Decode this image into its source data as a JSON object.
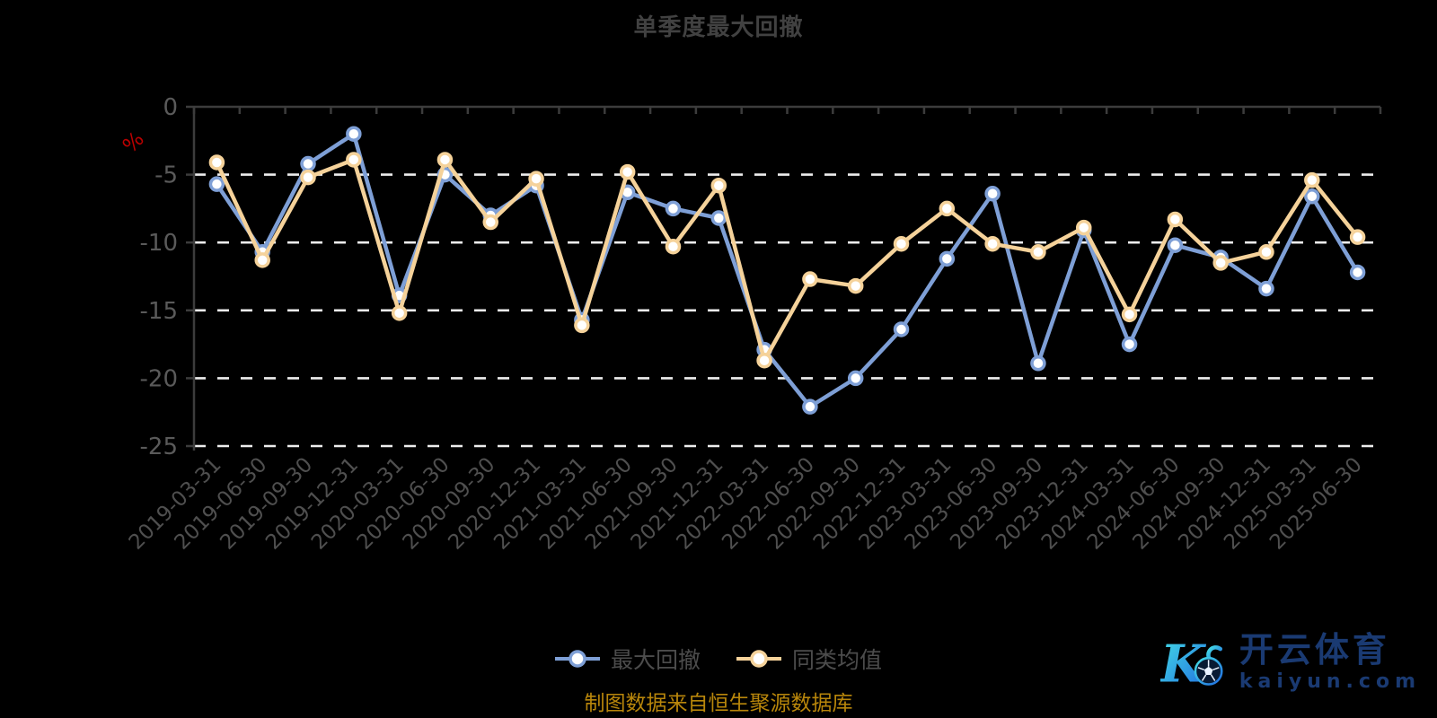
{
  "title": "单季度最大回撤",
  "y_axis": {
    "unit_label": "%"
  },
  "legend": {
    "items": [
      {
        "label": "最大回撤"
      },
      {
        "label": "同类均值"
      }
    ]
  },
  "source_note": "制图数据来自恒生聚源数据库",
  "logo": {
    "brand": "开云体育",
    "domain": "kaiyun.com"
  },
  "colors": {
    "background": "#000000",
    "title": "#414141",
    "axis_line": "#3c3c3c",
    "grid_line": "#ededed",
    "y_label": "#5a5a5a",
    "x_label": "#4f4f4f",
    "percent_label": "#bb0000",
    "legend_text": "#4c4c4c",
    "source_text": "#b8860b",
    "series_drawdown": "#7e9fd6",
    "series_average": "#f5d29a",
    "marker_fill": "#ffffff",
    "logo_gradient_start": "#45e0e6",
    "logo_gradient_end": "#1f6ae0",
    "logo_text": "#1a3a72"
  },
  "chart_data": {
    "type": "line",
    "title": "单季度最大回撤",
    "ylabel": "%",
    "ylim": [
      -25,
      0
    ],
    "y_ticks": [
      0,
      -5,
      -10,
      -15,
      -20,
      -25
    ],
    "grid": "horizontal dashed white lines at -5,-10,-15,-20,-25",
    "legend_position": "bottom-center",
    "categories": [
      "2019-03-31",
      "2019-06-30",
      "2019-09-30",
      "2019-12-31",
      "2020-03-31",
      "2020-06-30",
      "2020-09-30",
      "2020-12-31",
      "2021-03-31",
      "2021-06-30",
      "2021-09-30",
      "2021-12-31",
      "2022-03-31",
      "2022-06-30",
      "2022-09-30",
      "2022-12-31",
      "2023-03-31",
      "2023-06-30",
      "2023-09-30",
      "2023-12-31",
      "2024-03-31",
      "2024-06-30",
      "2024-09-30",
      "2024-12-31",
      "2025-03-31",
      "2025-06-30"
    ],
    "series": [
      {
        "name": "最大回撤",
        "color": "#7e9fd6",
        "values": [
          -5.7,
          -10.7,
          -4.2,
          -2.0,
          -13.9,
          -5.0,
          -8.0,
          -5.8,
          -15.7,
          -6.3,
          -7.5,
          -8.2,
          -17.9,
          -22.1,
          -20.0,
          -16.4,
          -11.2,
          -6.4,
          -18.9,
          -9.1,
          -17.5,
          -10.2,
          -11.1,
          -13.4,
          -6.6,
          -12.2
        ]
      },
      {
        "name": "同类均值",
        "color": "#f5d29a",
        "values": [
          -4.1,
          -11.3,
          -5.2,
          -3.9,
          -15.2,
          -3.9,
          -8.5,
          -5.3,
          -16.1,
          -4.8,
          -10.3,
          -5.8,
          -18.7,
          -12.7,
          -13.2,
          -10.1,
          -7.5,
          -10.1,
          -10.7,
          -8.9,
          -15.3,
          -8.3,
          -11.5,
          -10.7,
          -5.4,
          -9.6
        ]
      }
    ]
  }
}
